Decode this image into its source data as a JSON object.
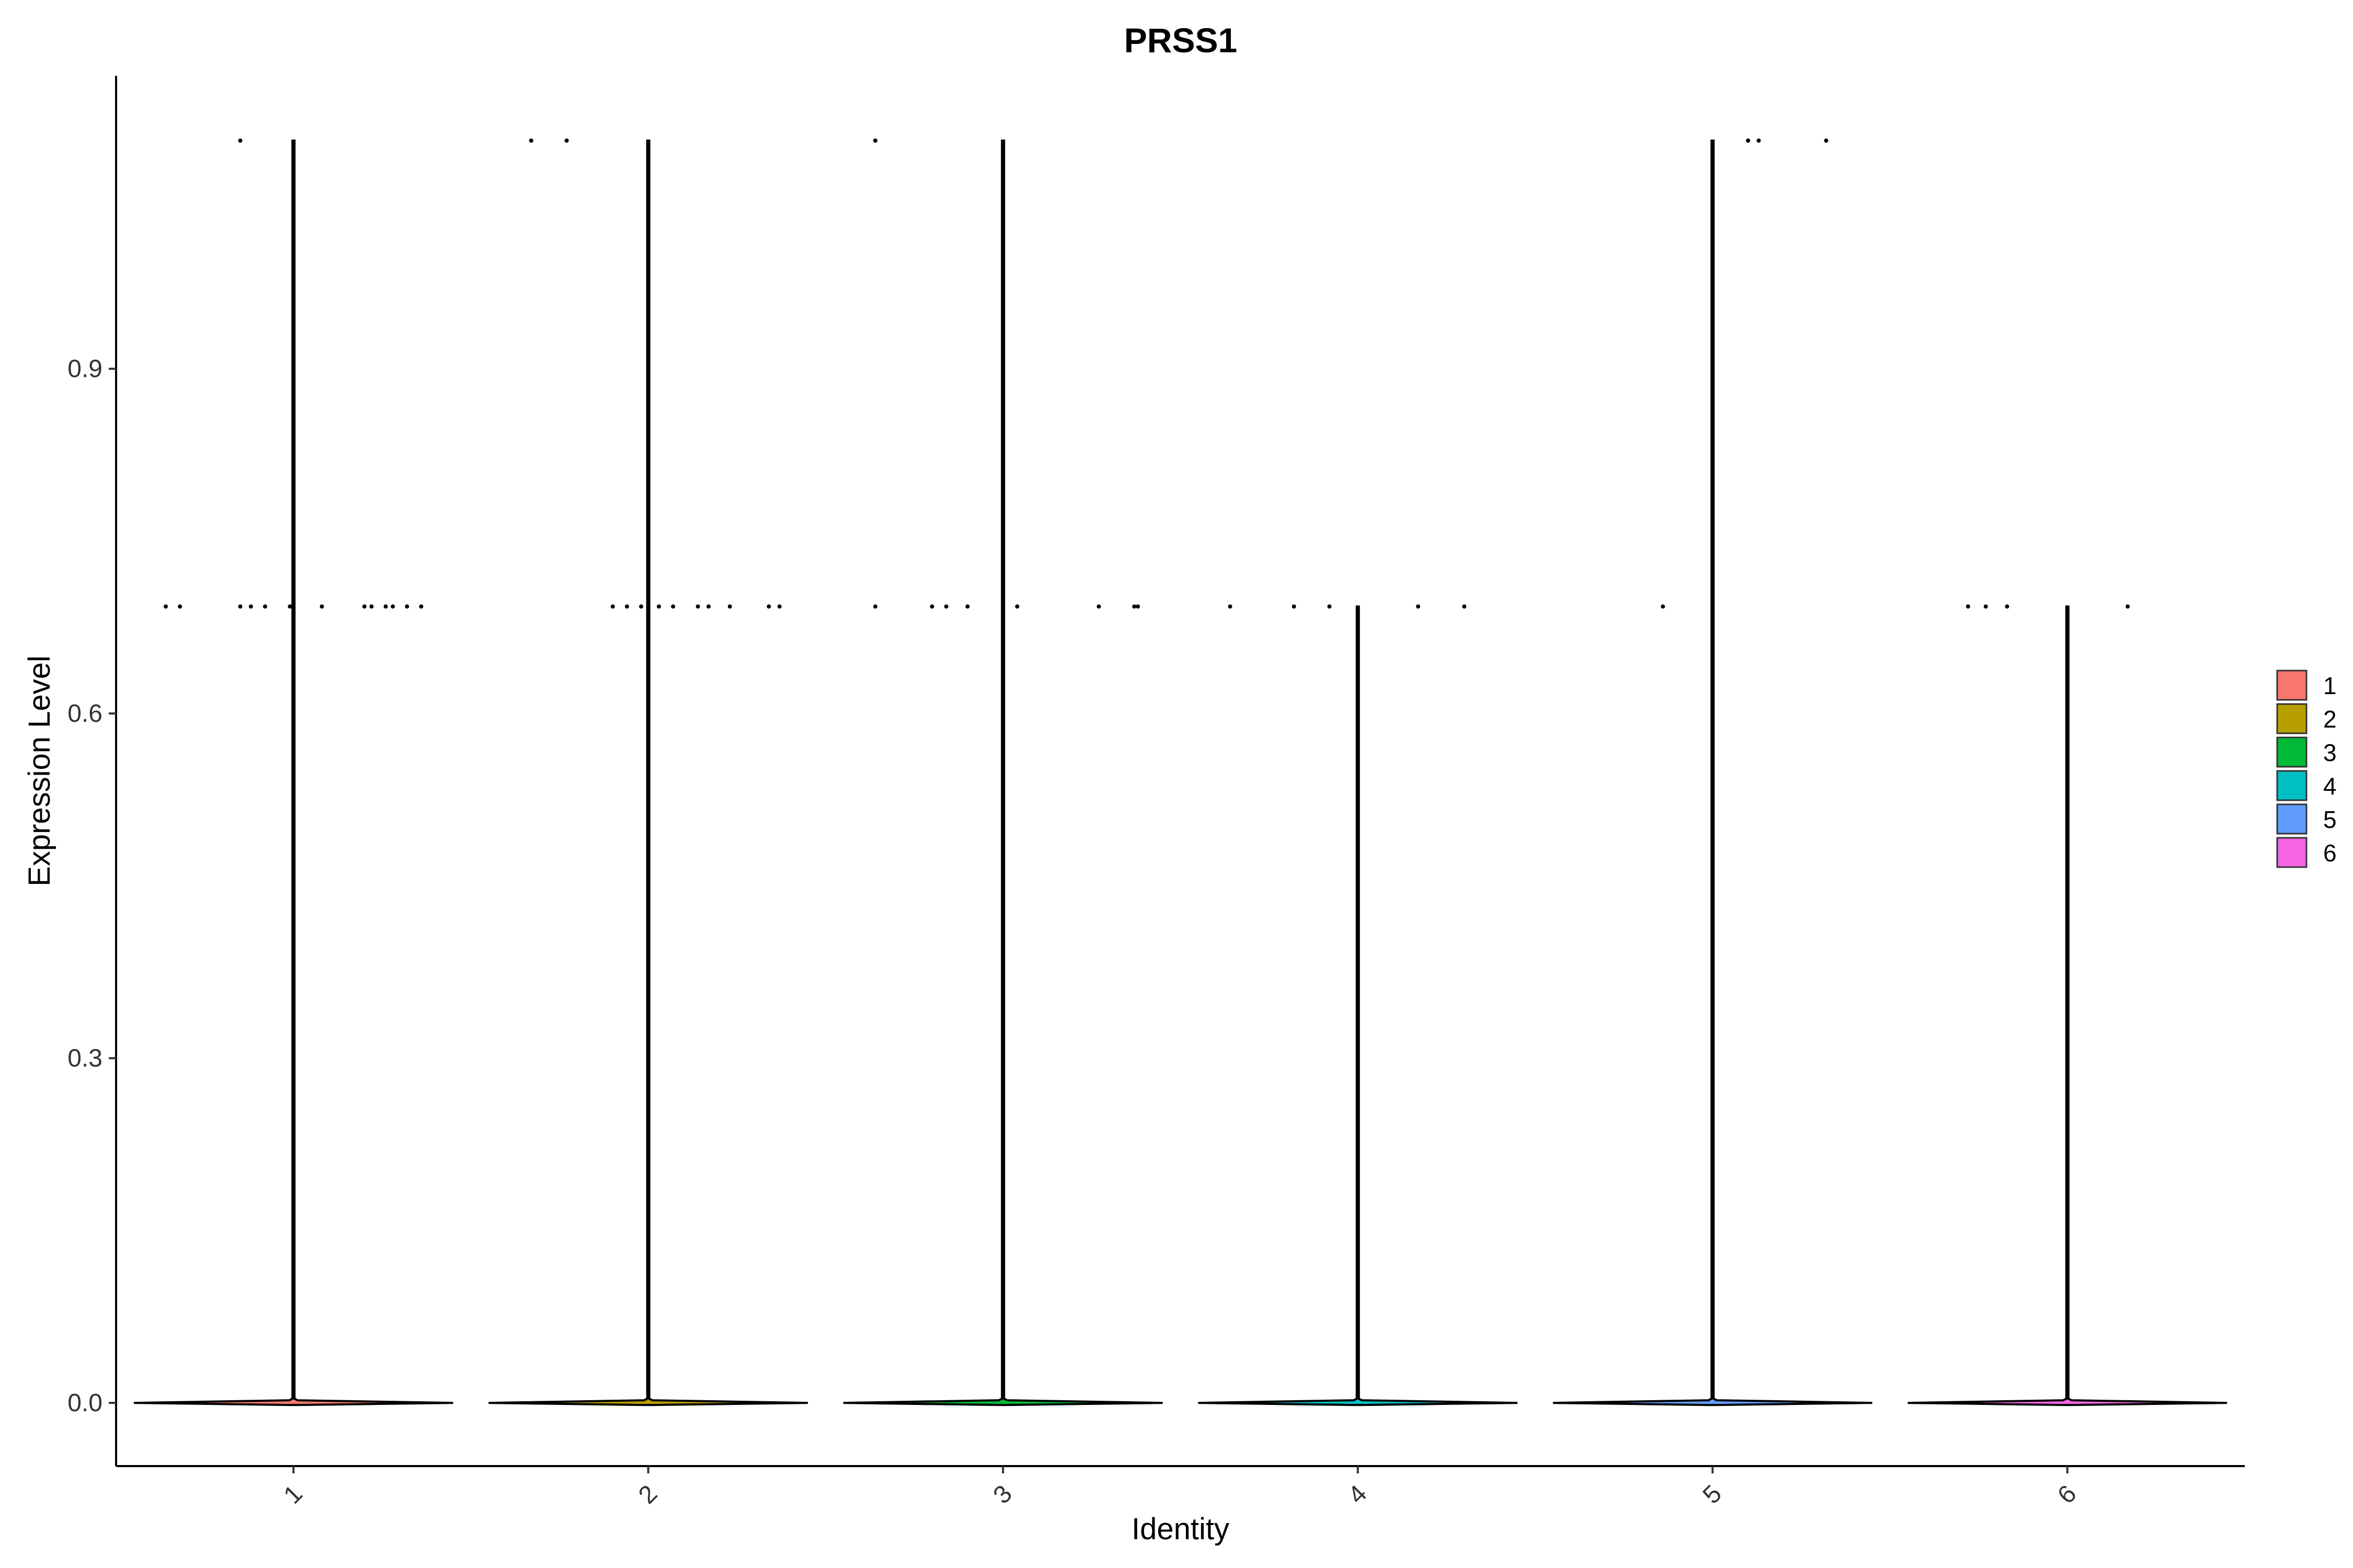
{
  "chart_data": {
    "type": "violin",
    "title": "PRSS1",
    "xlabel": "Identity",
    "ylabel": "Expression Level",
    "ylim": [
      -0.055,
      1.155
    ],
    "yticks": [
      0.0,
      0.3,
      0.6,
      0.9
    ],
    "ytick_labels": [
      "0.0",
      "0.3",
      "0.6",
      "0.9"
    ],
    "categories": [
      "1",
      "2",
      "3",
      "4",
      "5",
      "6"
    ],
    "colors": [
      "#F8766D",
      "#B79F00",
      "#00BA38",
      "#00BFC4",
      "#619CFF",
      "#F564E3"
    ],
    "legend": {
      "position": "right",
      "entries": [
        "1",
        "2",
        "3",
        "4",
        "5",
        "6"
      ]
    },
    "grid": false,
    "series": [
      {
        "category": "1",
        "max": 1.0986,
        "points": [
          {
            "x": -0.36,
            "y": 0.6931
          },
          {
            "x": -0.32,
            "y": 0.6931
          },
          {
            "x": -0.15,
            "y": 1.0986
          },
          {
            "x": -0.15,
            "y": 0.6931
          },
          {
            "x": -0.12,
            "y": 0.6931
          },
          {
            "x": -0.08,
            "y": 0.6931
          },
          {
            "x": -0.01,
            "y": 0.6931
          },
          {
            "x": 0.08,
            "y": 0.6931
          },
          {
            "x": 0.2,
            "y": 0.6931
          },
          {
            "x": 0.22,
            "y": 0.6931
          },
          {
            "x": 0.26,
            "y": 0.6931
          },
          {
            "x": 0.28,
            "y": 0.6931
          },
          {
            "x": 0.32,
            "y": 0.6931
          },
          {
            "x": 0.36,
            "y": 0.6931
          }
        ]
      },
      {
        "category": "2",
        "max": 1.0986,
        "points": [
          {
            "x": -0.33,
            "y": 1.0986
          },
          {
            "x": -0.23,
            "y": 1.0986
          },
          {
            "x": -0.1,
            "y": 0.6931
          },
          {
            "x": -0.06,
            "y": 0.6931
          },
          {
            "x": -0.02,
            "y": 0.6931
          },
          {
            "x": 0.03,
            "y": 0.6931
          },
          {
            "x": 0.07,
            "y": 0.6931
          },
          {
            "x": 0.14,
            "y": 0.6931
          },
          {
            "x": 0.17,
            "y": 0.6931
          },
          {
            "x": 0.23,
            "y": 0.6931
          },
          {
            "x": 0.34,
            "y": 0.6931
          },
          {
            "x": 0.37,
            "y": 0.6931
          }
        ]
      },
      {
        "category": "3",
        "max": 1.0986,
        "points": [
          {
            "x": -0.36,
            "y": 0.6931
          },
          {
            "x": -0.36,
            "y": 1.0986
          },
          {
            "x": -0.2,
            "y": 0.6931
          },
          {
            "x": -0.16,
            "y": 0.6931
          },
          {
            "x": -0.1,
            "y": 0.6931
          },
          {
            "x": 0.0,
            "y": 0.6931
          },
          {
            "x": 0.04,
            "y": 0.6931
          },
          {
            "x": 0.27,
            "y": 0.6931
          },
          {
            "x": 0.37,
            "y": 0.6931
          },
          {
            "x": 0.38,
            "y": 0.6931
          }
        ]
      },
      {
        "category": "4",
        "max": 0.6931,
        "points": [
          {
            "x": -0.36,
            "y": 0.6931
          },
          {
            "x": -0.18,
            "y": 0.6931
          },
          {
            "x": -0.08,
            "y": 0.6931
          },
          {
            "x": 0.17,
            "y": 0.6931
          },
          {
            "x": 0.3,
            "y": 0.6931
          }
        ]
      },
      {
        "category": "5",
        "max": 1.0986,
        "points": [
          {
            "x": -0.14,
            "y": 0.6931
          },
          {
            "x": 0.1,
            "y": 1.0986
          },
          {
            "x": 0.13,
            "y": 1.0986
          },
          {
            "x": 0.32,
            "y": 1.0986
          }
        ]
      },
      {
        "category": "6",
        "max": 0.6931,
        "points": [
          {
            "x": -0.28,
            "y": 0.6931
          },
          {
            "x": -0.23,
            "y": 0.6931
          },
          {
            "x": -0.17,
            "y": 0.6931
          },
          {
            "x": 0.17,
            "y": 0.6931
          }
        ]
      }
    ]
  }
}
